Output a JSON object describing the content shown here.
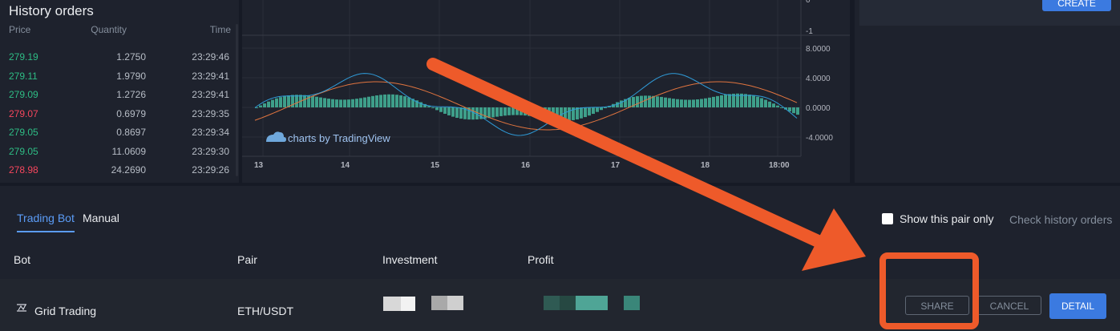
{
  "history": {
    "title": "History orders",
    "columns": {
      "price": "Price",
      "quantity": "Quantity",
      "time": "Time"
    },
    "rows": [
      {
        "price": "279.19",
        "qty": "1.2750",
        "time": "23:29:46",
        "side": "up"
      },
      {
        "price": "279.11",
        "qty": "1.9790",
        "time": "23:29:41",
        "side": "up"
      },
      {
        "price": "279.09",
        "qty": "1.2726",
        "time": "23:29:41",
        "side": "up"
      },
      {
        "price": "279.07",
        "qty": "0.6979",
        "time": "23:29:35",
        "side": "down"
      },
      {
        "price": "279.05",
        "qty": "0.8697",
        "time": "23:29:34",
        "side": "up"
      },
      {
        "price": "279.05",
        "qty": "11.0609",
        "time": "23:29:30",
        "side": "up"
      },
      {
        "price": "278.98",
        "qty": "24.2690",
        "time": "23:29:26",
        "side": "down"
      }
    ]
  },
  "chart": {
    "watermark": "charts by TradingView",
    "upper_axis_label": "-1",
    "y_ticks": [
      "8.0000",
      "4.0000",
      "0.0000",
      "-4.0000"
    ],
    "x_ticks": [
      "13",
      "14",
      "15",
      "16",
      "17",
      "18",
      "18:00"
    ],
    "colors": {
      "macd": "#2f9bd8",
      "signal": "#e0743f",
      "histogram": "#3e9f8a",
      "background": "#1e222d"
    }
  },
  "right": {
    "create_label": "CREATE"
  },
  "bottom": {
    "tabs": {
      "bot": "Trading Bot",
      "manual": "Manual"
    },
    "show_pair_label": "Show this pair only",
    "check_history_label": "Check history orders",
    "columns": {
      "bot": "Bot",
      "pair": "Pair",
      "investment": "Investment",
      "profit": "Profit"
    },
    "row": {
      "bot": "Grid Trading",
      "pair": "ETH/USDT"
    },
    "buttons": {
      "share": "SHARE",
      "cancel": "CANCEL",
      "detail": "DETAIL"
    }
  },
  "annotation": {
    "color": "#ee5a2a",
    "icon": "arrow-icon"
  }
}
